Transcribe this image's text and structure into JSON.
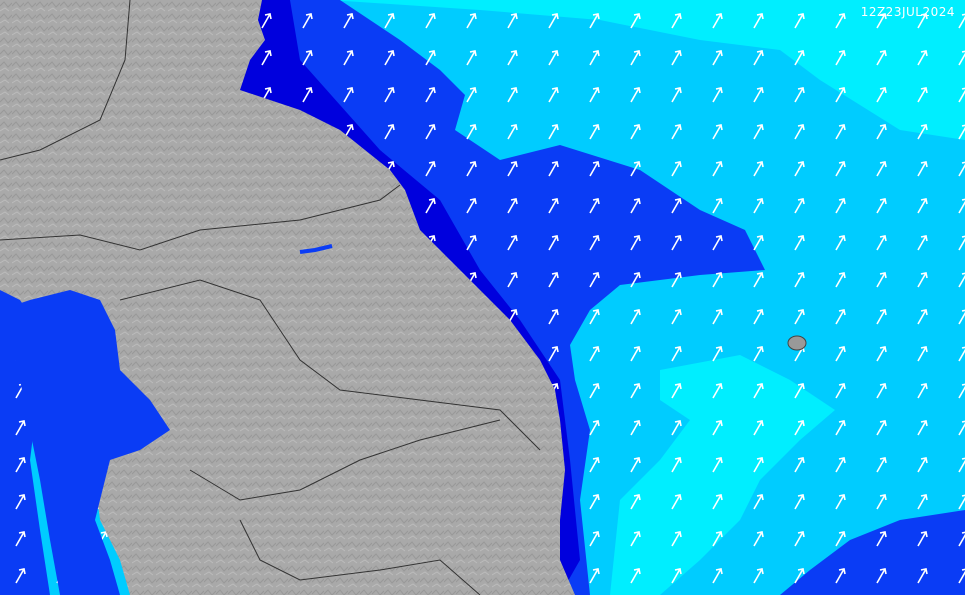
{
  "timestamp": "12Z23JUL2024"
}
